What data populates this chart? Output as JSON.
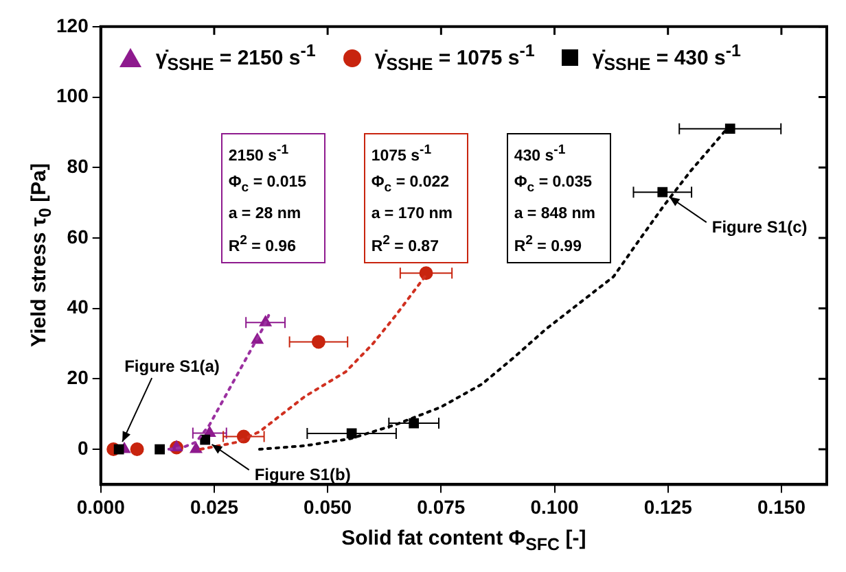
{
  "chart_data": {
    "type": "scatter",
    "xlabel": "Solid fat content Φ$_{SFC}$ [-]",
    "ylabel": "Yield stress τ$_{0}$ [Pa]",
    "xlim": [
      0,
      0.16
    ],
    "ylim": [
      -10,
      120
    ],
    "xticks": [
      {
        "value": 0,
        "label": "0.000"
      },
      {
        "value": 0.025,
        "label": "0.025"
      },
      {
        "value": 0.05,
        "label": "0.050"
      },
      {
        "value": 0.075,
        "label": "0.075"
      },
      {
        "value": 0.1,
        "label": "0.100"
      },
      {
        "value": 0.125,
        "label": "0.125"
      },
      {
        "value": 0.15,
        "label": "0.150"
      }
    ],
    "yticks": [
      0,
      20,
      40,
      60,
      80,
      100,
      120
    ],
    "grid": false,
    "legend": "top",
    "series": [
      {
        "name": "γ̇$_{SSHE}$ = 2150 s$^{-1}$",
        "color": "#8e1a8e",
        "marker": "triangle",
        "x": [
          0.0052,
          0.0167,
          0.021,
          0.024,
          0.0345,
          0.0363
        ],
        "values": [
          0,
          0.5,
          0,
          4.6,
          31,
          36
        ],
        "xerrors": [
          null,
          null,
          null,
          0.0037,
          null,
          0.0043
        ]
      },
      {
        "name": "γ̇$_{SSHE}$ = 1075 s$^{-1}$",
        "color": "#c8240e",
        "marker": "circle",
        "x": [
          0.0028,
          0.008,
          0.0167,
          0.0315,
          0.048,
          0.0717
        ],
        "values": [
          0,
          0,
          0.5,
          3.6,
          30.5,
          50
        ],
        "xerrors": [
          null,
          null,
          null,
          0.0045,
          0.0064,
          0.0057
        ]
      },
      {
        "name": "γ̇$_{SSHE}$ = 430 s$^{-1}$",
        "color": "#000000",
        "marker": "square",
        "x": [
          0.004,
          0.013,
          0.023,
          0.0553,
          0.069,
          0.1238,
          0.1387
        ],
        "values": [
          0,
          0,
          2.7,
          4.5,
          7.4,
          73,
          91
        ],
        "xerrors": [
          null,
          null,
          null,
          0.0098,
          0.0055,
          0.0064,
          0.0112
        ]
      },
      {
        "type": "line",
        "color": "#9b30a0",
        "marker": "none",
        "line_style": "dotted",
        "x": [
          0.015,
          0.018,
          0.021,
          0.024,
          0.027,
          0.03,
          0.033,
          0.036,
          0.037
        ],
        "values": [
          0,
          0.5,
          2,
          7,
          14,
          21,
          28,
          35,
          38
        ]
      },
      {
        "type": "line",
        "color": "#d03020",
        "marker": "none",
        "line_style": "dotted",
        "x": [
          0.022,
          0.03,
          0.035,
          0.04,
          0.045,
          0.054,
          0.06,
          0.065,
          0.072
        ],
        "values": [
          0,
          2,
          5,
          10,
          15,
          22,
          30,
          38,
          50
        ]
      },
      {
        "type": "line",
        "color": "#000000",
        "marker": "none",
        "line_style": "dotted",
        "x": [
          0.035,
          0.045,
          0.055,
          0.065,
          0.075,
          0.084,
          0.091,
          0.098,
          0.105,
          0.113,
          0.119,
          0.124,
          0.13,
          0.138
        ],
        "values": [
          0,
          1,
          3,
          7,
          12,
          18.5,
          26,
          34,
          41,
          49,
          60,
          69,
          79,
          91
        ]
      }
    ],
    "annotations": [
      "2150 s$^{-1}$\nΦ$_{c}$ = 0.015\na = 28 nm\nR$^{2}$ = 0.96",
      "1075 s$^{-1}$\nΦ$_{c}$ = 0.022\na = 170 nm\nR$^{2}$ = 0.87",
      "430 s$^{-1}$\nΦ$_{c}$ = 0.035\na = 848 nm\nR$^{2}$ = 0.99",
      {
        "text": "Figure S1(a)",
        "x": 0.004,
        "y": 0
      },
      {
        "text": "Figure S1(b)",
        "x": 0.023,
        "y": 2.7
      },
      {
        "text": "Figure S1(c)",
        "x": 0.1238,
        "y": 73
      }
    ]
  }
}
